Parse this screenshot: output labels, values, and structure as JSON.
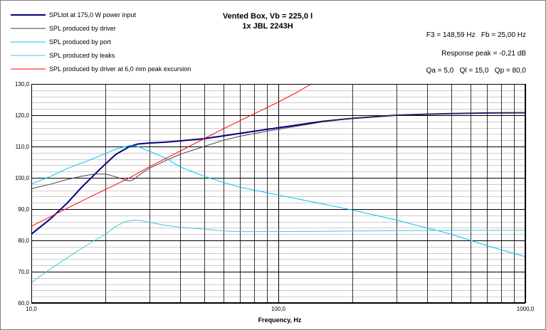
{
  "chart_data": {
    "type": "line",
    "title": "Vented Box, Vb = 225,0 l",
    "subtitle": "1x JBL 2243H",
    "xlabel": "Frequency, Hz",
    "ylabel": "",
    "x_scale": "log",
    "xlim": [
      10,
      1000
    ],
    "ylim": [
      60,
      130
    ],
    "x_ticks": [
      {
        "value": 10,
        "label": "10,0"
      },
      {
        "value": 100,
        "label": "100,0"
      },
      {
        "value": 1000,
        "label": "1000,0"
      }
    ],
    "y_ticks": [
      {
        "value": 60,
        "label": "60,0"
      },
      {
        "value": 70,
        "label": "70,0"
      },
      {
        "value": 80,
        "label": "80,0"
      },
      {
        "value": 90,
        "label": "90,0"
      },
      {
        "value": 100,
        "label": "100,0"
      },
      {
        "value": 110,
        "label": "110,0"
      },
      {
        "value": 120,
        "label": "120,0"
      },
      {
        "value": 130,
        "label": "130,0"
      }
    ],
    "grid": true,
    "legend_position": "top-left",
    "annotations": [
      "F3 = 148,59 Hz   Fb = 25,00 Hz",
      "Response peak = -0,21 dB",
      "Qa = 5,0   Ql = 15,0   Qp = 80,0"
    ],
    "series": [
      {
        "name": "SPLtot at 175,0 W power input",
        "color": "#000080",
        "width": 2,
        "points": [
          [
            10,
            82
          ],
          [
            12,
            87
          ],
          [
            14,
            92
          ],
          [
            16,
            97
          ],
          [
            18,
            101
          ],
          [
            20,
            104.5
          ],
          [
            22,
            107.5
          ],
          [
            25,
            110
          ],
          [
            27,
            110.8
          ],
          [
            30,
            111.1
          ],
          [
            35,
            111.4
          ],
          [
            40,
            111.8
          ],
          [
            50,
            112.5
          ],
          [
            60,
            113.4
          ],
          [
            70,
            114.2
          ],
          [
            100,
            116
          ],
          [
            150,
            118
          ],
          [
            200,
            119
          ],
          [
            300,
            120
          ],
          [
            400,
            120.3
          ],
          [
            500,
            120.5
          ],
          [
            700,
            120.7
          ],
          [
            1000,
            120.8
          ]
        ]
      },
      {
        "name": "SPL produced by driver",
        "color": "#404040",
        "width": 1,
        "points": [
          [
            10,
            96.5
          ],
          [
            12,
            98
          ],
          [
            14,
            99.5
          ],
          [
            16,
            100.5
          ],
          [
            18,
            101.2
          ],
          [
            20,
            101.2
          ],
          [
            22,
            100.3
          ],
          [
            24,
            99.3
          ],
          [
            25,
            99
          ],
          [
            26,
            99.5
          ],
          [
            28,
            101.5
          ],
          [
            30,
            103
          ],
          [
            35,
            105.5
          ],
          [
            40,
            107.5
          ],
          [
            50,
            110
          ],
          [
            60,
            112
          ],
          [
            70,
            113.3
          ],
          [
            100,
            115.5
          ],
          [
            150,
            117.8
          ],
          [
            200,
            119
          ],
          [
            300,
            120
          ],
          [
            500,
            120.5
          ],
          [
            1000,
            120.8
          ]
        ]
      },
      {
        "name": "SPL produced by port",
        "color": "#00BFFF",
        "width": 1,
        "points": [
          [
            10,
            98
          ],
          [
            12,
            100.5
          ],
          [
            14,
            103
          ],
          [
            17,
            105.5
          ],
          [
            20,
            107.8
          ],
          [
            22,
            109.2
          ],
          [
            25,
            110.3
          ],
          [
            27,
            110
          ],
          [
            30,
            108.5
          ],
          [
            35,
            106.3
          ],
          [
            40,
            103.5
          ],
          [
            50,
            100.5
          ],
          [
            60,
            98.5
          ],
          [
            70,
            97
          ],
          [
            100,
            94.5
          ],
          [
            150,
            91.7
          ],
          [
            200,
            89.7
          ],
          [
            300,
            86.5
          ],
          [
            500,
            82
          ],
          [
            700,
            78.3
          ],
          [
            1000,
            74.8
          ]
        ]
      },
      {
        "name": "SPL produced by leaks",
        "color": "#40C8D8",
        "width": 1,
        "points": [
          [
            10,
            66.5
          ],
          [
            12,
            71
          ],
          [
            15,
            76
          ],
          [
            18,
            80
          ],
          [
            20,
            82
          ],
          [
            22,
            84.5
          ],
          [
            24,
            86
          ],
          [
            26,
            86.5
          ],
          [
            28,
            86.3
          ],
          [
            30,
            85.8
          ],
          [
            35,
            84.8
          ],
          [
            40,
            84.2
          ],
          [
            50,
            83.6
          ],
          [
            60,
            83
          ],
          [
            70,
            82.8
          ],
          [
            100,
            82.8
          ],
          [
            150,
            82.9
          ],
          [
            200,
            83
          ],
          [
            300,
            83.1
          ],
          [
            500,
            83.2
          ],
          [
            1000,
            83.2
          ]
        ]
      },
      {
        "name": "SPL produced by driver at 6,0 mm peak excursion",
        "color": "#FF0000",
        "width": 1,
        "points": [
          [
            10,
            84.5
          ],
          [
            15,
            91.5
          ],
          [
            20,
            96.3
          ],
          [
            25,
            100
          ],
          [
            30,
            103.5
          ],
          [
            40,
            108.5
          ],
          [
            50,
            112.5
          ],
          [
            60,
            115.7
          ],
          [
            80,
            120.5
          ],
          [
            100,
            124.2
          ],
          [
            120,
            127.5
          ],
          [
            136,
            130
          ]
        ]
      }
    ]
  }
}
